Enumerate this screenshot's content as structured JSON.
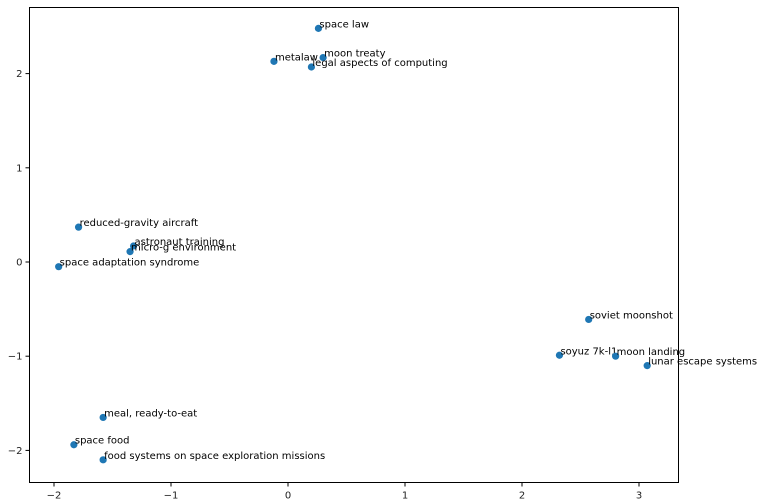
{
  "chart_data": {
    "type": "scatter",
    "title": "",
    "xlabel": "",
    "ylabel": "",
    "xlim": [
      -2.22,
      3.35
    ],
    "ylim": [
      -2.34,
      2.71
    ],
    "xticks": [
      -2,
      -1,
      0,
      1,
      2,
      3
    ],
    "yticks": [
      -2,
      -1,
      0,
      1,
      2
    ],
    "grid": false,
    "marker_color": "#1f77b4",
    "points": [
      {
        "label": "space law",
        "x": 0.26,
        "y": 2.48
      },
      {
        "label": "moon treaty",
        "x": 0.3,
        "y": 2.17
      },
      {
        "label": "metalaw",
        "x": -0.12,
        "y": 2.13
      },
      {
        "label": "legal aspects of computing",
        "x": 0.2,
        "y": 2.07
      },
      {
        "label": "reduced-gravity aircraft",
        "x": -1.79,
        "y": 0.37
      },
      {
        "label": "astronaut training",
        "x": -1.32,
        "y": 0.17
      },
      {
        "label": "micro-g environment",
        "x": -1.35,
        "y": 0.11
      },
      {
        "label": "space adaptation syndrome",
        "x": -1.96,
        "y": -0.05
      },
      {
        "label": "soviet moonshot",
        "x": 2.57,
        "y": -0.61
      },
      {
        "label": "soyuz 7k-l1",
        "x": 2.32,
        "y": -0.99
      },
      {
        "label": "moon landing",
        "x": 2.8,
        "y": -1.0
      },
      {
        "label": "lunar escape systems",
        "x": 3.07,
        "y": -1.1
      },
      {
        "label": "meal, ready-to-eat",
        "x": -1.58,
        "y": -1.65
      },
      {
        "label": "space food",
        "x": -1.83,
        "y": -1.94
      },
      {
        "label": "food systems on space exploration missions",
        "x": -1.58,
        "y": -2.1
      }
    ]
  }
}
